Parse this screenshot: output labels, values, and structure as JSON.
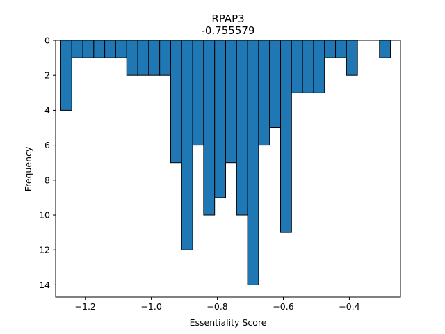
{
  "chart_data": {
    "type": "bar",
    "orientation": "inverted-histogram",
    "title": "RPAP3",
    "subtitle": "-0.755579",
    "xlabel": "Essentiality Score",
    "ylabel": "Frequency",
    "xlim": [
      -1.29,
      -0.245
    ],
    "ylim": [
      0,
      14.7
    ],
    "y_inverted": true,
    "bin_width": 0.0333,
    "x_ticks": [
      -1.2,
      -1.0,
      -0.8,
      -0.6,
      -0.4
    ],
    "x_tick_labels": [
      "−1.2",
      "−1.0",
      "−0.8",
      "−0.6",
      "−0.4"
    ],
    "y_ticks": [
      0,
      2,
      4,
      6,
      8,
      10,
      12,
      14
    ],
    "y_tick_labels": [
      "0",
      "2",
      "4",
      "6",
      "8",
      "10",
      "12",
      "14"
    ],
    "bin_starts": [
      -1.2744,
      -1.2411,
      -1.2078,
      -1.1745,
      -1.1412,
      -1.1079,
      -1.0746,
      -1.0413,
      -1.008,
      -0.9747,
      -0.9414,
      -0.9081,
      -0.8748,
      -0.8415,
      -0.8082,
      -0.7749,
      -0.7416,
      -0.7083,
      -0.675,
      -0.6417,
      -0.6084,
      -0.5751,
      -0.5418,
      -0.5085,
      -0.4752,
      -0.4419,
      -0.4086,
      -0.3753,
      -0.342,
      -0.3087,
      -0.2754
    ],
    "values": [
      4,
      1,
      1,
      1,
      1,
      1,
      2,
      2,
      2,
      2,
      7,
      12,
      6,
      10,
      9,
      7,
      10,
      14,
      6,
      5,
      11,
      3,
      3,
      3,
      1,
      1,
      2,
      0,
      0,
      1,
      0
    ],
    "grid": false,
    "colors": {
      "bar": "#1f77b4",
      "edge": "#000000"
    }
  }
}
